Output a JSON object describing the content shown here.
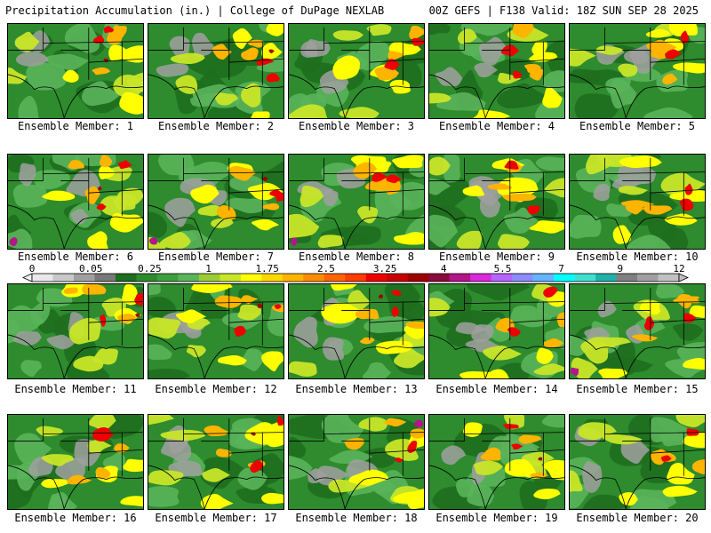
{
  "header": {
    "title_left": "Precipitation Accumulation (in.) | College of DuPage NEXLAB",
    "title_right": "00Z GEFS | F138 Valid: 18Z SUN SEP 28 2025"
  },
  "panel_label_prefix": "Ensemble Member: ",
  "members": [
    1,
    2,
    3,
    4,
    5,
    6,
    7,
    8,
    9,
    10,
    11,
    12,
    13,
    14,
    15,
    16,
    17,
    18,
    19,
    20
  ],
  "legend": {
    "tick_labels": [
      "0",
      "0.05",
      "0.25",
      "1",
      "1.75",
      "2.5",
      "3.25",
      "4",
      "5.5",
      "7",
      "9",
      "12"
    ],
    "bins": [
      "#e8e8e8",
      "#c8c8c8",
      "#a0a0a0",
      "#787878",
      "#1e6e1e",
      "#2e8b2e",
      "#3ca03c",
      "#5ab45a",
      "#9acd32",
      "#c8e628",
      "#ffff00",
      "#ffd700",
      "#ffb400",
      "#ff8c00",
      "#ff6400",
      "#ff3c00",
      "#ee0000",
      "#c80000",
      "#a00000",
      "#8b0a3c",
      "#b4148c",
      "#dc28dc",
      "#b464ff",
      "#8c8cff",
      "#64b4ff",
      "#00ffff",
      "#40e0d0",
      "#20b2aa",
      "#808080",
      "#a0a0a0",
      "#c0c0c0"
    ],
    "colors": {
      "green_dark": "#1e6e1e",
      "green": "#2e8b2e",
      "green_light": "#5ab45a",
      "yellow_green": "#c8e628",
      "yellow": "#ffff00",
      "orange": "#ffb400",
      "red": "#ee0000",
      "dark_red": "#a00000",
      "magenta": "#b4148c",
      "gray": "#a0a0a0"
    }
  }
}
